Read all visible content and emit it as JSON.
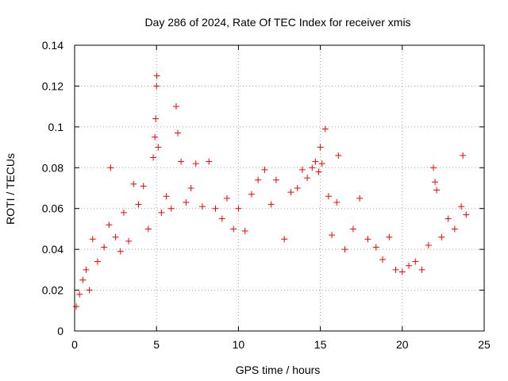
{
  "chart_data": {
    "type": "scatter",
    "title": "Day 286 of 2024, Rate Of TEC Index for receiver xmis",
    "xlabel": "GPS time / hours",
    "ylabel": "ROTI / TECUs",
    "xlim": [
      0,
      25
    ],
    "ylim": [
      0,
      0.14
    ],
    "x_ticks": [
      "0",
      "5",
      "10",
      "15",
      "20",
      "25"
    ],
    "y_ticks": [
      "0",
      "0.02",
      "0.04",
      "0.06",
      "0.08",
      "0.1",
      "0.12",
      "0.14"
    ],
    "x_tick_values": [
      0,
      5,
      10,
      15,
      20,
      25
    ],
    "y_tick_values": [
      0,
      0.02,
      0.04,
      0.06,
      0.08,
      0.1,
      0.12,
      0.14
    ],
    "grid": true,
    "series": [
      {
        "marker": "plus",
        "color": "#ff0000",
        "points": [
          [
            0.1,
            0.012
          ],
          [
            0.3,
            0.018
          ],
          [
            0.5,
            0.025
          ],
          [
            0.7,
            0.03
          ],
          [
            0.9,
            0.02
          ],
          [
            1.1,
            0.045
          ],
          [
            1.4,
            0.034
          ],
          [
            1.8,
            0.041
          ],
          [
            2.1,
            0.052
          ],
          [
            2.2,
            0.08
          ],
          [
            2.5,
            0.046
          ],
          [
            2.8,
            0.039
          ],
          [
            3.0,
            0.058
          ],
          [
            3.3,
            0.044
          ],
          [
            3.6,
            0.072
          ],
          [
            3.9,
            0.062
          ],
          [
            4.2,
            0.071
          ],
          [
            4.5,
            0.05
          ],
          [
            4.8,
            0.085
          ],
          [
            4.9,
            0.095
          ],
          [
            4.95,
            0.104
          ],
          [
            5.0,
            0.12
          ],
          [
            5.02,
            0.125
          ],
          [
            5.1,
            0.09
          ],
          [
            5.3,
            0.058
          ],
          [
            5.6,
            0.066
          ],
          [
            5.9,
            0.06
          ],
          [
            6.2,
            0.11
          ],
          [
            6.3,
            0.097
          ],
          [
            6.5,
            0.083
          ],
          [
            6.8,
            0.063
          ],
          [
            7.1,
            0.07
          ],
          [
            7.4,
            0.082
          ],
          [
            7.8,
            0.061
          ],
          [
            8.2,
            0.083
          ],
          [
            8.6,
            0.06
          ],
          [
            9.0,
            0.055
          ],
          [
            9.3,
            0.065
          ],
          [
            9.7,
            0.05
          ],
          [
            10.0,
            0.06
          ],
          [
            10.4,
            0.049
          ],
          [
            10.8,
            0.067
          ],
          [
            11.2,
            0.074
          ],
          [
            11.6,
            0.079
          ],
          [
            12.0,
            0.062
          ],
          [
            12.3,
            0.074
          ],
          [
            12.8,
            0.045
          ],
          [
            13.2,
            0.068
          ],
          [
            13.6,
            0.07
          ],
          [
            13.9,
            0.079
          ],
          [
            14.2,
            0.075
          ],
          [
            14.5,
            0.08
          ],
          [
            14.7,
            0.083
          ],
          [
            14.9,
            0.078
          ],
          [
            15.0,
            0.09
          ],
          [
            15.1,
            0.082
          ],
          [
            15.3,
            0.099
          ],
          [
            15.5,
            0.066
          ],
          [
            15.7,
            0.047
          ],
          [
            16.0,
            0.063
          ],
          [
            16.1,
            0.086
          ],
          [
            16.5,
            0.04
          ],
          [
            17.0,
            0.05
          ],
          [
            17.4,
            0.065
          ],
          [
            17.9,
            0.045
          ],
          [
            18.4,
            0.041
          ],
          [
            18.8,
            0.035
          ],
          [
            19.2,
            0.046
          ],
          [
            19.6,
            0.03
          ],
          [
            20.0,
            0.029
          ],
          [
            20.4,
            0.032
          ],
          [
            20.8,
            0.034
          ],
          [
            21.2,
            0.03
          ],
          [
            21.6,
            0.042
          ],
          [
            21.9,
            0.08
          ],
          [
            22.0,
            0.073
          ],
          [
            22.1,
            0.069
          ],
          [
            22.4,
            0.046
          ],
          [
            22.8,
            0.055
          ],
          [
            23.2,
            0.05
          ],
          [
            23.6,
            0.061
          ],
          [
            23.7,
            0.086
          ],
          [
            23.9,
            0.057
          ]
        ]
      }
    ]
  }
}
